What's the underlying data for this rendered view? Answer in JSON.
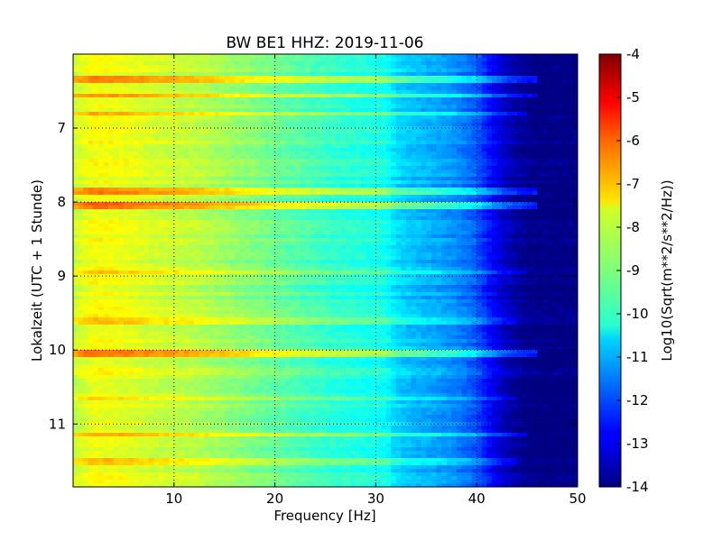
{
  "chart_data": {
    "type": "heatmap",
    "title": "BW BE1 HHZ: 2019-11-06",
    "xlabel": "Frequency [Hz]",
    "ylabel": "Lokalzeit (UTC + 1 Stunde)",
    "xlim": [
      0,
      50
    ],
    "ylim": [
      6,
      11.85
    ],
    "y_inverted": true,
    "x_ticks": [
      "10",
      "20",
      "30",
      "40",
      "50"
    ],
    "x_tick_values": [
      10,
      20,
      30,
      40,
      50
    ],
    "y_ticks": [
      "7",
      "8",
      "9",
      "10",
      "11"
    ],
    "y_tick_values": [
      7,
      8,
      9,
      10,
      11
    ],
    "grid": true,
    "colormap": "jet",
    "colorbar": {
      "label": "Log10(Sqrt(m**2/s**2/Hz))",
      "range": [
        -14,
        -4
      ],
      "ticks": [
        "-4",
        "-5",
        "-6",
        "-7",
        "-8",
        "-9",
        "-10",
        "-11",
        "-12",
        "-13",
        "-14"
      ],
      "tick_values": [
        -4,
        -5,
        -6,
        -7,
        -8,
        -9,
        -10,
        -11,
        -12,
        -13,
        -14
      ]
    },
    "spectral_profile": {
      "frequency_hz": [
        0,
        2,
        4,
        6,
        8,
        10,
        12,
        14,
        16,
        18,
        20,
        22,
        24,
        26,
        28,
        30,
        31,
        32,
        34,
        36,
        38,
        40,
        41,
        42,
        43,
        44,
        45,
        46,
        48,
        50
      ],
      "log10_amplitude": [
        -8.3,
        -7.8,
        -7.9,
        -8.0,
        -8.2,
        -8.3,
        -8.4,
        -8.6,
        -8.8,
        -9.0,
        -9.2,
        -9.4,
        -9.6,
        -9.8,
        -9.9,
        -10.0,
        -10.1,
        -10.6,
        -10.9,
        -11.1,
        -11.4,
        -11.9,
        -12.5,
        -13.0,
        -13.4,
        -13.7,
        -13.9,
        -14.0,
        -14.0,
        -14.0
      ]
    },
    "time_bands": [
      {
        "time": 6.35,
        "log10_offset": 1.2,
        "f_max_hz": 46
      },
      {
        "time": 6.55,
        "log10_offset": 1.2,
        "f_max_hz": 46
      },
      {
        "time": 6.8,
        "log10_offset": 1.0,
        "f_max_hz": 45
      },
      {
        "time": 7.85,
        "log10_offset": 1.4,
        "f_max_hz": 46
      },
      {
        "time": 8.05,
        "log10_offset": 1.6,
        "f_max_hz": 46
      },
      {
        "time": 8.95,
        "log10_offset": 0.6,
        "f_max_hz": 45
      },
      {
        "time": 9.6,
        "log10_offset": 0.5,
        "f_max_hz": 44
      },
      {
        "time": 10.05,
        "log10_offset": 1.5,
        "f_max_hz": 46
      },
      {
        "time": 10.65,
        "log10_offset": 0.5,
        "f_max_hz": 44
      },
      {
        "time": 11.15,
        "log10_offset": 1.0,
        "f_max_hz": 45
      },
      {
        "time": 11.5,
        "log10_offset": 0.6,
        "f_max_hz": 44
      }
    ]
  }
}
